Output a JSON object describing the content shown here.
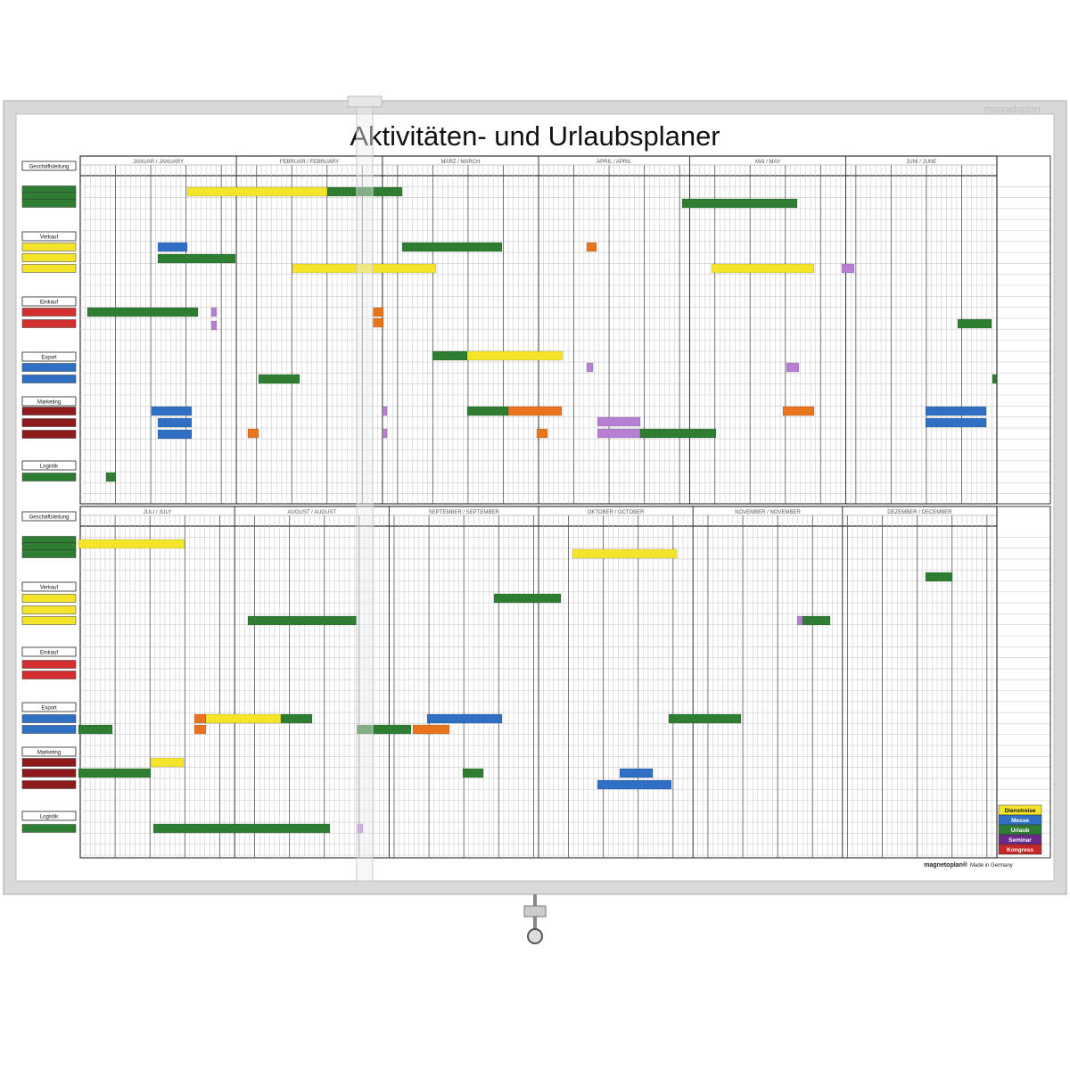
{
  "title": "Aktivitäten- und Urlaubsplaner",
  "brand": "magnetoplan",
  "footer": {
    "brand": "magnetoplan®",
    "origin": "Made in Germany"
  },
  "halves": [
    {
      "months": [
        "JANUAR / JANUARY",
        "FEBRUAR / FEBRUARY",
        "MÄRZ / MARCH",
        "APRIL / APRIL",
        "MAI / MAY",
        "JUNI / JUNE"
      ],
      "departments": [
        "Geschäftsleitung",
        "Verkauf",
        "Einkauf",
        "Export",
        "Marketing",
        "Logistik"
      ]
    },
    {
      "months": [
        "JULI / JULY",
        "AUGUST / AUGUST",
        "SEPTEMBER / SEPTEMBER",
        "OKTOBER / OCTOBER",
        "NOVEMBER / NOVEMBER",
        "DEZEMBER / DECEMBER"
      ],
      "departments": [
        "Geschäftsleitung",
        "Verkauf",
        "Einkauf",
        "Export",
        "Marketing",
        "Logistik"
      ]
    }
  ],
  "legend": [
    {
      "label": "Dienstreise",
      "color": "#f5e52a"
    },
    {
      "label": "Messe",
      "color": "#2f6fc4"
    },
    {
      "label": "Urlaub",
      "color": "#2e7d32"
    },
    {
      "label": "Seminar",
      "color": "#6a2a8a"
    },
    {
      "label": "Kongress",
      "color": "#c62828"
    }
  ]
}
